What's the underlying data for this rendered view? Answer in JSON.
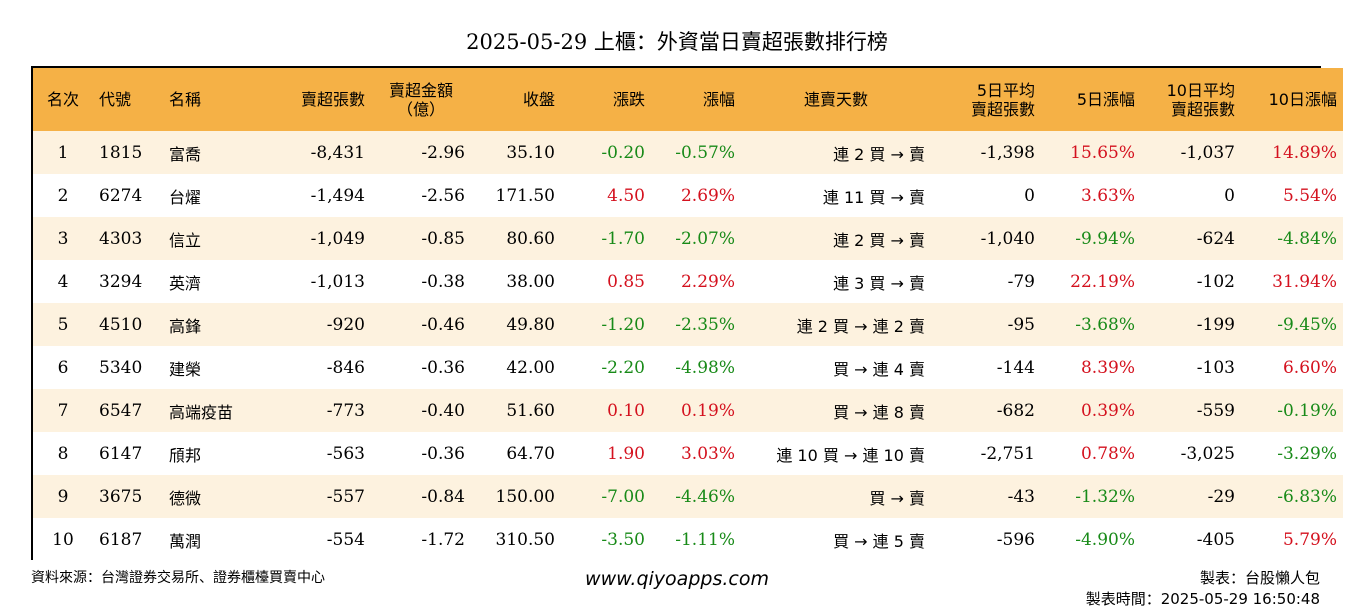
{
  "title": "2025-05-29 上櫃：外資當日賣超張數排行榜",
  "headers": {
    "rank": "名次",
    "code": "代號",
    "name": "名稱",
    "shares": "賣超張數",
    "amount_l1": "賣超金額",
    "amount_l2": "（億）",
    "close": "收盤",
    "change": "漲跌",
    "pct": "漲幅",
    "streak": "連賣天數",
    "avg5_l1": "5日平均",
    "avg5_l2": "賣超張數",
    "pct5": "5日漲幅",
    "avg10_l1": "10日平均",
    "avg10_l2": "賣超張數",
    "pct10": "10日漲幅"
  },
  "rows": [
    {
      "rank": "1",
      "code": "1815",
      "name": "富喬",
      "shares": "-8,431",
      "amount": "-2.96",
      "close": "35.10",
      "change": "-0.20",
      "pct": "-0.57%",
      "streak": "連 2 買 → 賣",
      "avg5": "-1,398",
      "pct5": "15.65%",
      "avg10": "-1,037",
      "pct10": "14.89%"
    },
    {
      "rank": "2",
      "code": "6274",
      "name": "台燿",
      "shares": "-1,494",
      "amount": "-2.56",
      "close": "171.50",
      "change": "4.50",
      "pct": "2.69%",
      "streak": "連 11 買 → 賣",
      "avg5": "0",
      "pct5": "3.63%",
      "avg10": "0",
      "pct10": "5.54%"
    },
    {
      "rank": "3",
      "code": "4303",
      "name": "信立",
      "shares": "-1,049",
      "amount": "-0.85",
      "close": "80.60",
      "change": "-1.70",
      "pct": "-2.07%",
      "streak": "連 2 買 → 賣",
      "avg5": "-1,040",
      "pct5": "-9.94%",
      "avg10": "-624",
      "pct10": "-4.84%"
    },
    {
      "rank": "4",
      "code": "3294",
      "name": "英濟",
      "shares": "-1,013",
      "amount": "-0.38",
      "close": "38.00",
      "change": "0.85",
      "pct": "2.29%",
      "streak": "連 3 買 → 賣",
      "avg5": "-79",
      "pct5": "22.19%",
      "avg10": "-102",
      "pct10": "31.94%"
    },
    {
      "rank": "5",
      "code": "4510",
      "name": "高鋒",
      "shares": "-920",
      "amount": "-0.46",
      "close": "49.80",
      "change": "-1.20",
      "pct": "-2.35%",
      "streak": "連 2 買 → 連 2 賣",
      "avg5": "-95",
      "pct5": "-3.68%",
      "avg10": "-199",
      "pct10": "-9.45%"
    },
    {
      "rank": "6",
      "code": "5340",
      "name": "建榮",
      "shares": "-846",
      "amount": "-0.36",
      "close": "42.00",
      "change": "-2.20",
      "pct": "-4.98%",
      "streak": "買 → 連 4 賣",
      "avg5": "-144",
      "pct5": "8.39%",
      "avg10": "-103",
      "pct10": "6.60%"
    },
    {
      "rank": "7",
      "code": "6547",
      "name": "高端疫苗",
      "shares": "-773",
      "amount": "-0.40",
      "close": "51.60",
      "change": "0.10",
      "pct": "0.19%",
      "streak": "買 → 連 8 賣",
      "avg5": "-682",
      "pct5": "0.39%",
      "avg10": "-559",
      "pct10": "-0.19%"
    },
    {
      "rank": "8",
      "code": "6147",
      "name": "頎邦",
      "shares": "-563",
      "amount": "-0.36",
      "close": "64.70",
      "change": "1.90",
      "pct": "3.03%",
      "streak": "連 10 買 → 連 10 賣",
      "avg5": "-2,751",
      "pct5": "0.78%",
      "avg10": "-3,025",
      "pct10": "-3.29%"
    },
    {
      "rank": "9",
      "code": "3675",
      "name": "德微",
      "shares": "-557",
      "amount": "-0.84",
      "close": "150.00",
      "change": "-7.00",
      "pct": "-4.46%",
      "streak": "買 → 賣",
      "avg5": "-43",
      "pct5": "-1.32%",
      "avg10": "-29",
      "pct10": "-6.83%"
    },
    {
      "rank": "10",
      "code": "6187",
      "name": "萬潤",
      "shares": "-554",
      "amount": "-1.72",
      "close": "310.50",
      "change": "-3.50",
      "pct": "-1.11%",
      "streak": "買 → 連 5 賣",
      "avg5": "-596",
      "pct5": "-4.90%",
      "avg10": "-405",
      "pct10": "5.79%"
    }
  ],
  "footer": {
    "source": "資料來源：台灣證券交易所、證券櫃檯買賣中心",
    "website": "www.qiyoapps.com",
    "maker": "製表：台股懶人包",
    "time": "製表時間：2025-05-29 16:50:48"
  },
  "colors": {
    "header_bg": "#f5b146",
    "row_alt_bg": "#fdf2df",
    "up": "#d4111e",
    "down": "#188a18"
  }
}
